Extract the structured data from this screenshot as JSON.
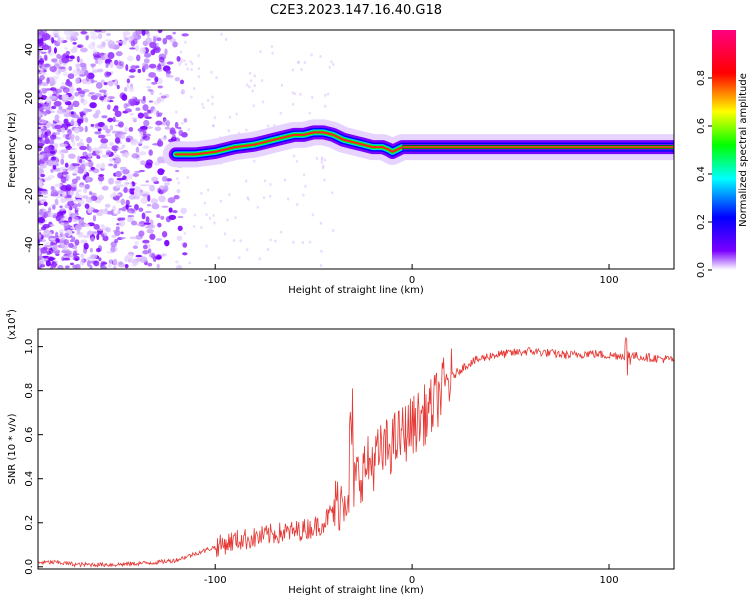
{
  "title": "C2E3.2023.147.16.40.G18",
  "chart_data": [
    {
      "type": "heatmap",
      "title": "C2E3.2023.147.16.40.G18",
      "xlabel": "Height of straight line (km)",
      "ylabel": "Frequency (Hz)",
      "xlim": [
        -190,
        133
      ],
      "ylim": [
        -50,
        48
      ],
      "x_ticks": [
        -100,
        0,
        100
      ],
      "y_ticks": [
        -40,
        -20,
        0,
        20,
        40
      ],
      "colorbar": {
        "label": "Normalized spectral amplitude",
        "range": [
          0,
          1
        ],
        "ticks": [
          "0.0",
          "0.2",
          "0.4",
          "0.6",
          "0.8"
        ],
        "colormap": [
          "#ff00ff",
          "#ff0000",
          "#ffff00",
          "#00ff00",
          "#00ffff",
          "#0000ff",
          "#7a00ff",
          "#ffffff"
        ]
      },
      "ridge": {
        "x": [
          -120,
          -110,
          -100,
          -95,
          -90,
          -80,
          -75,
          -70,
          -65,
          -60,
          -55,
          -50,
          -45,
          -40,
          -35,
          -30,
          -25,
          -20,
          -15,
          -12,
          -10,
          -5,
          0,
          20,
          50,
          100,
          133
        ],
        "y": [
          -3,
          -3,
          -2,
          -1,
          0,
          1,
          2,
          3,
          4,
          5,
          5,
          6,
          6,
          5,
          3,
          2,
          1,
          0,
          0,
          -1,
          -2,
          0,
          0,
          0,
          0,
          0,
          0
        ]
      }
    },
    {
      "type": "line",
      "xlabel": "Height of straight line (km)",
      "ylabel": "SNR (10 * v/v)",
      "yscale_note": "(x10",
      "yscale_exp": "4",
      "xlim": [
        -190,
        133
      ],
      "ylim": [
        -0.01,
        1.08
      ],
      "x_ticks": [
        -100,
        0,
        100
      ],
      "y_ticks": [
        "0.0",
        "0.2",
        "0.4",
        "0.6",
        "0.8",
        "1.0"
      ],
      "series": [
        {
          "color": "#e53935",
          "x": [
            -190,
            -180,
            -170,
            -160,
            -150,
            -140,
            -130,
            -120,
            -110,
            -100,
            -90,
            -80,
            -70,
            -60,
            -50,
            -45,
            -40,
            -35,
            -30,
            -25,
            -20,
            -15,
            -10,
            -5,
            0,
            5,
            10,
            15,
            20,
            25,
            30,
            40,
            50,
            60,
            70,
            80,
            90,
            100,
            110,
            120,
            133
          ],
          "y": [
            0.02,
            0.02,
            0.01,
            0.01,
            0.01,
            0.015,
            0.02,
            0.03,
            0.06,
            0.09,
            0.12,
            0.13,
            0.15,
            0.16,
            0.18,
            0.2,
            0.26,
            0.32,
            0.38,
            0.44,
            0.48,
            0.52,
            0.56,
            0.6,
            0.64,
            0.68,
            0.72,
            0.8,
            0.86,
            0.9,
            0.93,
            0.96,
            0.97,
            0.98,
            0.97,
            0.96,
            0.97,
            0.96,
            0.96,
            0.95,
            0.94
          ]
        }
      ]
    }
  ]
}
